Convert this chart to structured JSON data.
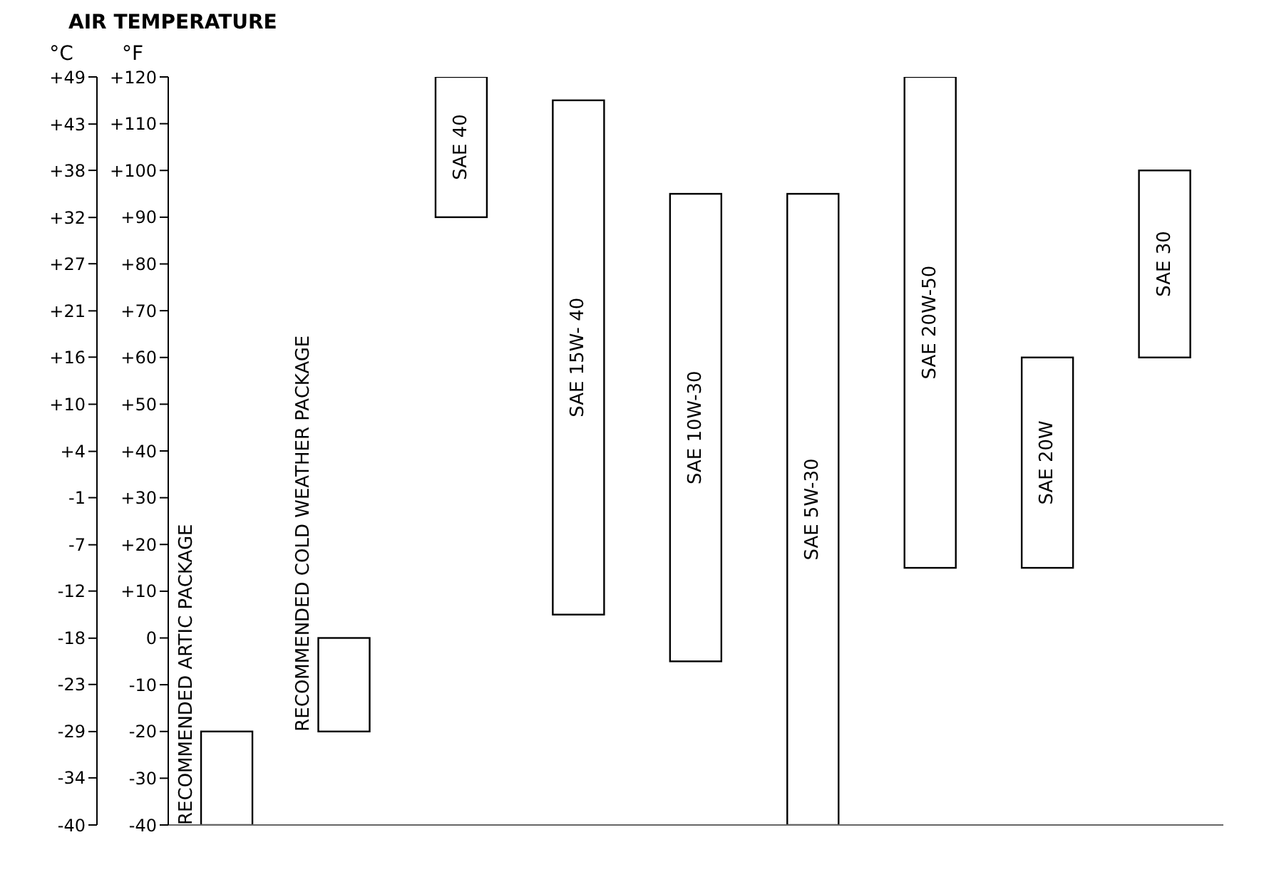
{
  "chart_data": {
    "type": "bar",
    "title": "AIR TEMPERATURE",
    "ylabel": "°F",
    "y2label": "°C",
    "categories": [
      "RECOMMENDED ARTIC PACKAGE",
      "RECOMMENDED COLD WEATHER PACKAGE",
      "SAE 40",
      "SAE 15W- 40",
      "SAE 10W-30",
      "SAE 5W-30",
      "SAE 20W-50",
      "SAE 20W",
      "SAE 30"
    ],
    "series": [
      {
        "color": "#ffffff",
        "values": [
          20,
          20,
          30,
          110,
          100,
          135,
          105,
          45,
          40
        ],
        "base": [
          -40,
          -20,
          90,
          5,
          -5,
          -40,
          15,
          15,
          60
        ]
      }
    ],
    "ylim": [
      -40,
      120
    ],
    "yticks": [
      {
        "value": 120,
        "label": "+120"
      },
      {
        "value": 110,
        "label": "+110"
      },
      {
        "value": 100,
        "label": "+100"
      },
      {
        "value": 90,
        "label": "+90"
      },
      {
        "value": 80,
        "label": "+80"
      },
      {
        "value": 70,
        "label": "+70"
      },
      {
        "value": 60,
        "label": "+60"
      },
      {
        "value": 50,
        "label": "+50"
      },
      {
        "value": 40,
        "label": "+40"
      },
      {
        "value": 30,
        "label": "+30"
      },
      {
        "value": 20,
        "label": "+20"
      },
      {
        "value": 10,
        "label": "+10"
      },
      0,
      -10,
      -20,
      -30,
      -40
    ],
    "y2lim": [
      -40,
      48.9
    ],
    "y2ticks": [
      {
        "value": 48.9,
        "label": "+49"
      },
      {
        "value": 43.3,
        "label": "+43"
      },
      {
        "value": 37.8,
        "label": "+38"
      },
      {
        "value": 32.2,
        "label": "+32"
      },
      {
        "value": 26.7,
        "label": "+27"
      },
      {
        "value": 21.1,
        "label": "+21"
      },
      {
        "value": 15.6,
        "label": "+16"
      },
      {
        "value": 10,
        "label": "+10"
      },
      {
        "value": 4.4,
        "label": "+4"
      },
      {
        "value": -1.1,
        "label": "-1"
      },
      {
        "value": -6.7,
        "label": "-7"
      },
      {
        "value": -12.2,
        "label": "-12"
      },
      {
        "value": -17.8,
        "label": "-18"
      },
      {
        "value": -23.3,
        "label": "-23"
      },
      {
        "value": -28.9,
        "label": "-29"
      },
      {
        "value": -34.4,
        "label": "-34"
      },
      -40
    ],
    "tick_labels": "y",
    "grid": false
  }
}
